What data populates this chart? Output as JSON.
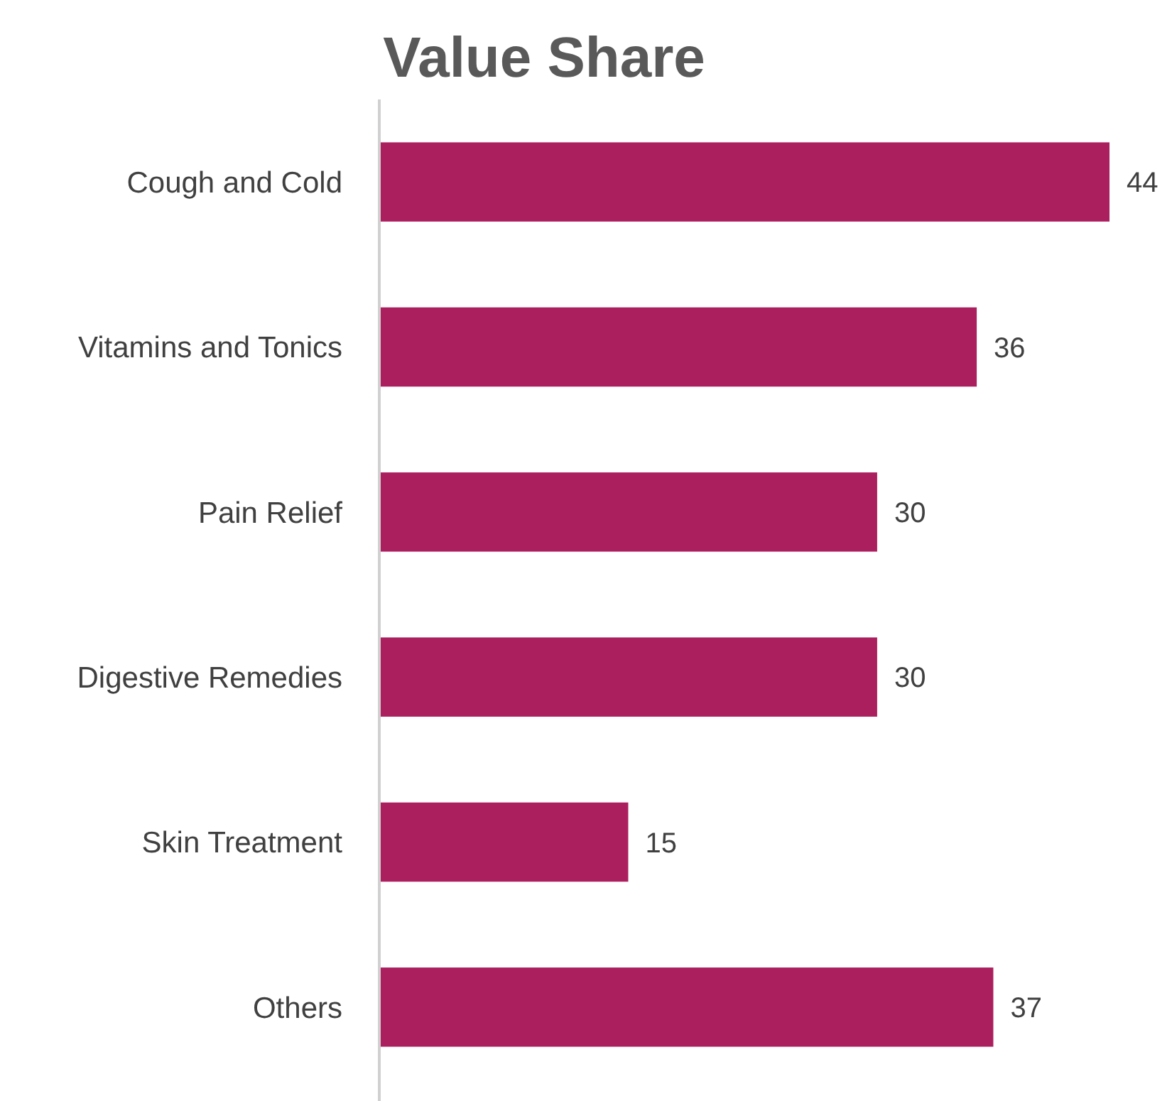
{
  "chart_data": {
    "type": "bar",
    "orientation": "horizontal",
    "title": "Value Share",
    "categories": [
      "Cough and Cold",
      "Vitamins and Tonics",
      "Pain Relief",
      "Digestive Remedies",
      "Skin Treatment",
      "Others"
    ],
    "values": [
      44,
      36,
      30,
      30,
      15,
      37
    ],
    "color": "#ac1f5e",
    "data_labels": true
  }
}
